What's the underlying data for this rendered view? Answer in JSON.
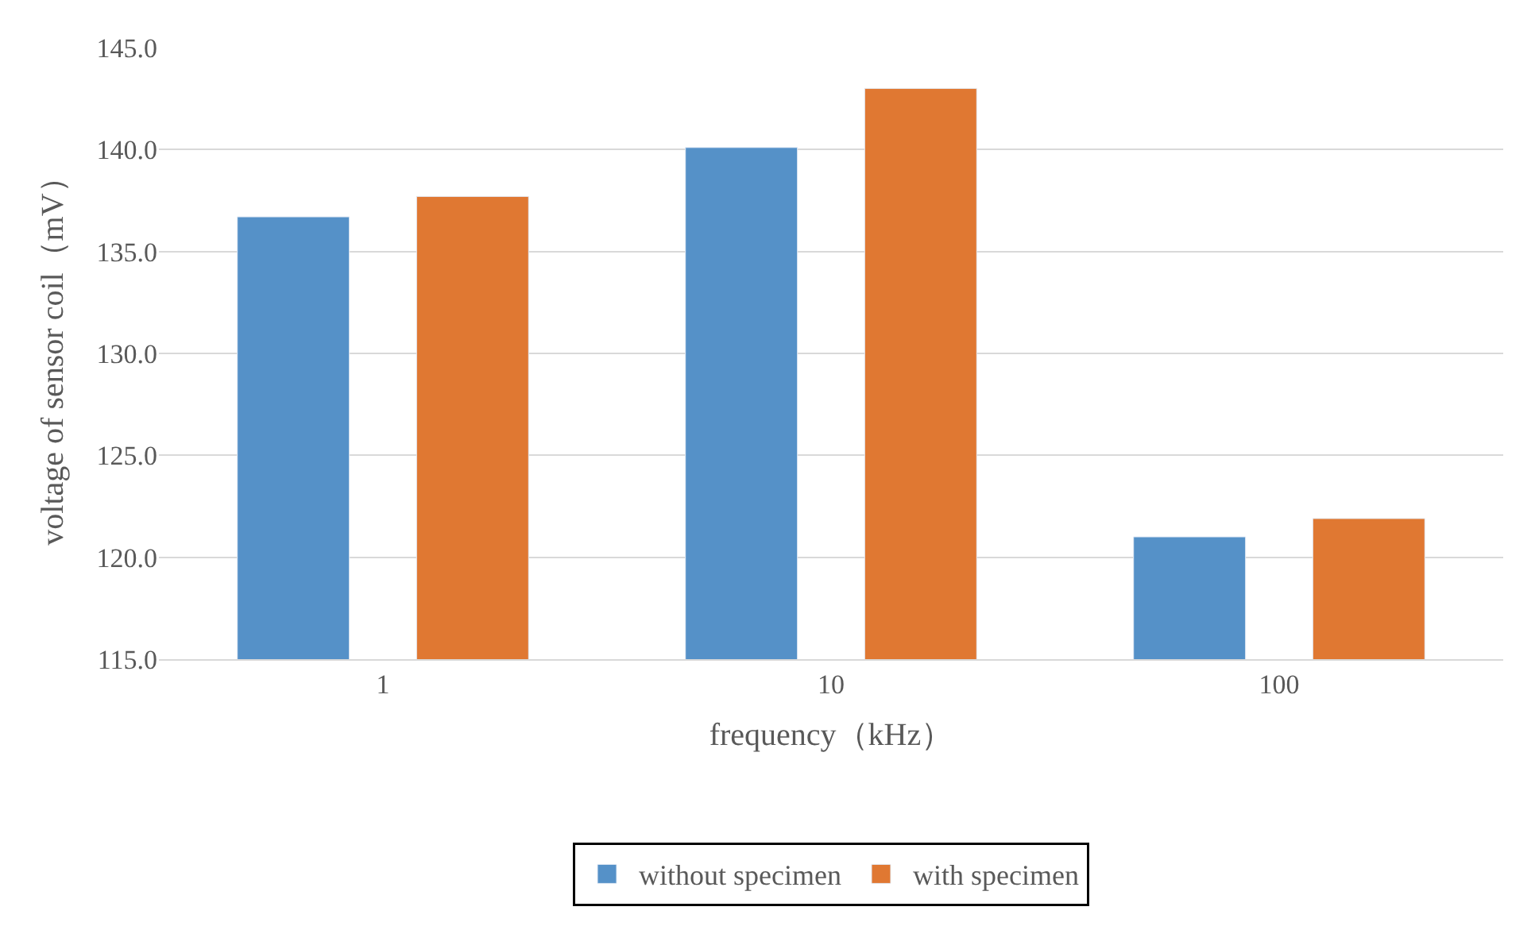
{
  "chart_data": {
    "type": "bar",
    "xlabel": "frequency（kHz）",
    "ylabel": "voltage of sensor coil（mV）",
    "categories": [
      "1",
      "10",
      "100"
    ],
    "series": [
      {
        "name": "without specimen",
        "color": "#5591c8",
        "values": [
          136.7,
          140.1,
          121.0
        ]
      },
      {
        "name": "with specimen",
        "color": "#e07832",
        "values": [
          137.7,
          143.0,
          121.9
        ]
      }
    ],
    "ylim": [
      115,
      145
    ],
    "yticks": [
      {
        "value": 115,
        "label": "115.0"
      },
      {
        "value": 120,
        "label": "120.0"
      },
      {
        "value": 125,
        "label": "125.0"
      },
      {
        "value": 130,
        "label": "130.0"
      },
      {
        "value": 135,
        "label": "135.0"
      },
      {
        "value": 140,
        "label": "140.0"
      },
      {
        "value": 145,
        "label": "145.0"
      }
    ],
    "grid": "y",
    "legend": "bottom"
  }
}
